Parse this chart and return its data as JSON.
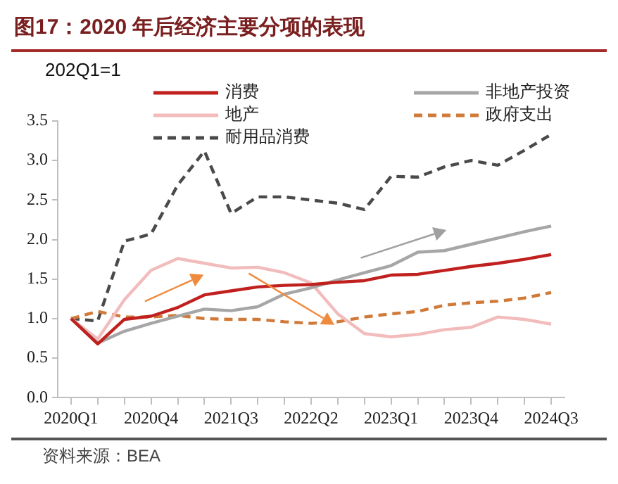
{
  "chart_data": {
    "type": "line",
    "title": "图17：2020 年后经济主要分项的表现",
    "ylabel": "202Q1=1",
    "annotations": [
      "资料来源：BEA"
    ],
    "categories": [
      "2020Q1",
      null,
      null,
      "2020Q4",
      null,
      null,
      "2021Q3",
      null,
      null,
      "2022Q2",
      null,
      null,
      "2023Q1",
      null,
      null,
      "2023Q4",
      null,
      null,
      "2024Q3"
    ],
    "series": [
      {
        "name": "消费",
        "color": "#c0201e",
        "line_style": "solid",
        "values": [
          1.0,
          0.68,
          0.99,
          1.03,
          1.14,
          1.3,
          1.35,
          1.4,
          1.42,
          1.43,
          1.46,
          1.48,
          1.55,
          1.56,
          1.61,
          1.66,
          1.7,
          1.75,
          1.81
        ]
      },
      {
        "name": "非地产投资",
        "color": "#a6a6a6",
        "line_style": "solid",
        "values": [
          1.0,
          0.69,
          0.84,
          0.94,
          1.03,
          1.12,
          1.1,
          1.15,
          1.31,
          1.39,
          1.49,
          1.58,
          1.67,
          1.84,
          1.86,
          1.94,
          2.02,
          2.1,
          2.17
        ]
      },
      {
        "name": "地产",
        "color": "#f2bcbc",
        "line_style": "solid",
        "values": [
          1.0,
          0.74,
          1.24,
          1.61,
          1.76,
          1.7,
          1.64,
          1.65,
          1.58,
          1.45,
          1.06,
          0.81,
          0.77,
          0.8,
          0.86,
          0.89,
          1.02,
          0.99,
          0.93
        ]
      },
      {
        "name": "政府支出",
        "color": "#d07a3a",
        "line_style": "dashed",
        "values": [
          1.0,
          1.09,
          1.02,
          1.02,
          1.04,
          1.0,
          0.99,
          0.99,
          0.96,
          0.94,
          0.96,
          1.02,
          1.06,
          1.09,
          1.17,
          1.2,
          1.22,
          1.26,
          1.33
        ]
      },
      {
        "name": "耐用品消费",
        "color": "#4a4a4a",
        "line_style": "dashed",
        "values": [
          1.0,
          0.97,
          1.98,
          2.07,
          2.69,
          3.12,
          2.33,
          2.54,
          2.54,
          2.5,
          2.46,
          2.38,
          2.8,
          2.79,
          2.92,
          3.0,
          2.94,
          3.13,
          3.33
        ]
      }
    ],
    "ylim": [
      0,
      3.5
    ],
    "yticks": [
      {
        "value": 0,
        "label": "0.0"
      },
      0.5,
      {
        "value": 1,
        "label": "1.0"
      },
      1.5,
      {
        "value": 2,
        "label": "2.0"
      },
      2.5,
      {
        "value": 3,
        "label": "3.0"
      },
      3.5
    ],
    "grid": false,
    "legend": "top",
    "marker": "none"
  }
}
